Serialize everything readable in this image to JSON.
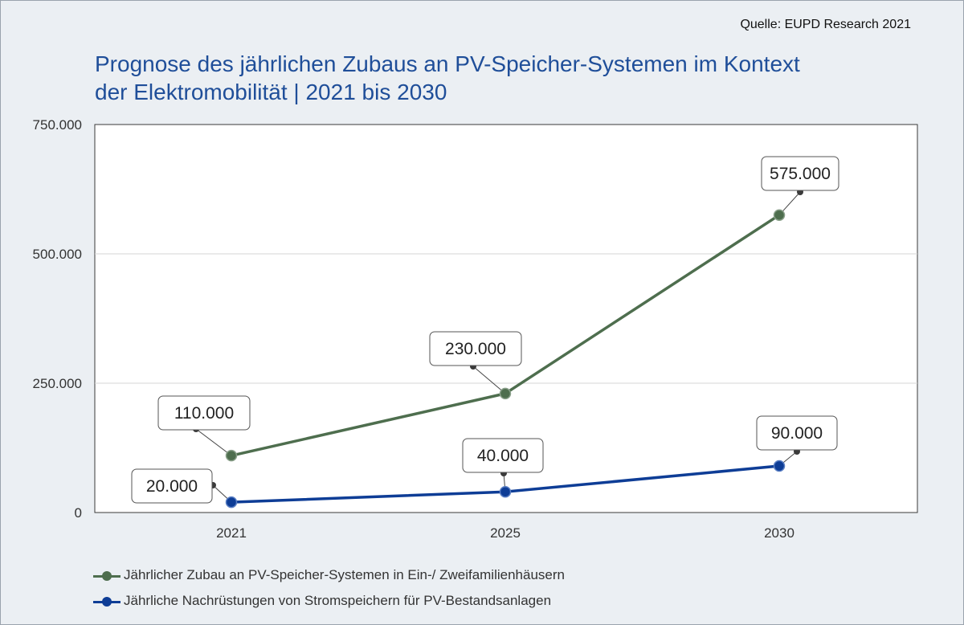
{
  "source": "Quelle: EUPD Research 2021",
  "title_line1": "Prognose des jährlichen Zubaus an PV-Speicher-Systemen im Kontext",
  "title_line2": "der Elektromobilität  | 2021 bis 2030",
  "chart_data": {
    "type": "line",
    "categories": [
      "2021",
      "2025",
      "2030"
    ],
    "series": [
      {
        "name": "Jährlicher Zubau an PV-Speicher-Systemen in Ein-/ Zweifamilienhäusern",
        "values": [
          110000,
          230000,
          575000
        ],
        "labels": [
          "110.000",
          "230.000",
          "575.000"
        ],
        "color": "#4e6e4e"
      },
      {
        "name": "Jährliche Nachrüstungen von Stromspeichern für PV-Bestandsanlagen",
        "values": [
          20000,
          40000,
          90000
        ],
        "labels": [
          "20.000",
          "40.000",
          "90.000"
        ],
        "color": "#0e3d96"
      }
    ],
    "y_ticks": [
      0,
      250000,
      500000,
      750000
    ],
    "y_tick_labels": [
      "0",
      "250.000",
      "500.000",
      "750.000"
    ],
    "ylim": [
      0,
      750000
    ],
    "grid": true,
    "legend_position": "bottom"
  }
}
